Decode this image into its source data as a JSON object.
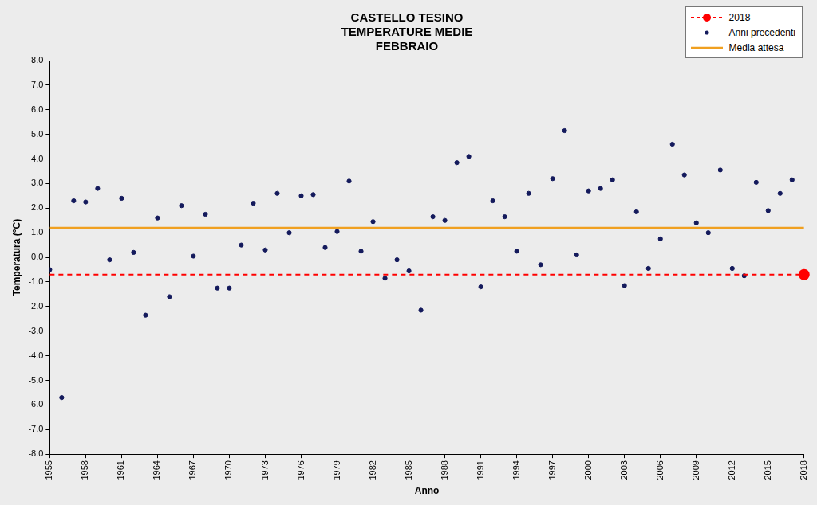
{
  "chart_data": {
    "type": "scatter",
    "title": [
      "CASTELLO TESINO",
      "TEMPERATURE MEDIE",
      "FEBBRAIO"
    ],
    "x_label": "Anno",
    "y_label": "Temperatura (°C)",
    "xlim": [
      1955,
      2018
    ],
    "xticks": [
      1955,
      1958,
      1961,
      1964,
      1967,
      1970,
      1973,
      1976,
      1979,
      1982,
      1985,
      1988,
      1991,
      1994,
      1997,
      2000,
      2003,
      2006,
      2009,
      2012,
      2015,
      2018
    ],
    "ylim": [
      -8,
      8
    ],
    "yticks": [
      {
        "value": -8,
        "label": "-8.0"
      },
      {
        "value": -7,
        "label": "-7.0"
      },
      {
        "value": -6,
        "label": "-6.0"
      },
      {
        "value": -5,
        "label": "-5.0"
      },
      {
        "value": -4,
        "label": "-4.0"
      },
      {
        "value": -3,
        "label": "-3.0"
      },
      {
        "value": -2,
        "label": "-2.0"
      },
      {
        "value": -1,
        "label": "-1.0"
      },
      {
        "value": 0,
        "label": "0.0"
      },
      {
        "value": 1,
        "label": "1.0"
      },
      {
        "value": 2,
        "label": "2.0"
      },
      {
        "value": 3,
        "label": "3.0"
      },
      {
        "value": 4,
        "label": "4.0"
      },
      {
        "value": 5,
        "label": "5.0"
      },
      {
        "value": 6,
        "label": "6.0"
      },
      {
        "value": 7,
        "label": "7.0"
      },
      {
        "value": 8,
        "label": "8.0"
      }
    ],
    "grid": false,
    "legend": "upper right",
    "series": [
      {
        "name": "2018",
        "type": "scatter",
        "color": "#ff0000",
        "marker": "circle",
        "line_style": "dashed",
        "x": [
          2018
        ],
        "values": [
          -0.7
        ]
      },
      {
        "name": "Anni precedenti",
        "type": "scatter",
        "color": "#141a5c",
        "marker": "circle",
        "x": [
          1955,
          1956,
          1957,
          1958,
          1959,
          1960,
          1961,
          1962,
          1963,
          1964,
          1965,
          1966,
          1967,
          1968,
          1969,
          1970,
          1971,
          1972,
          1973,
          1974,
          1975,
          1976,
          1977,
          1978,
          1979,
          1980,
          1981,
          1982,
          1983,
          1984,
          1985,
          1986,
          1987,
          1988,
          1989,
          1990,
          1991,
          1992,
          1993,
          1994,
          1995,
          1996,
          1997,
          1998,
          1999,
          2000,
          2001,
          2002,
          2003,
          2004,
          2005,
          2006,
          2007,
          2008,
          2009,
          2010,
          2011,
          2012,
          2013,
          2014,
          2015,
          2016,
          2017
        ],
        "values": [
          -0.5,
          -5.7,
          2.3,
          2.25,
          2.8,
          -0.1,
          2.4,
          0.2,
          -2.35,
          1.6,
          -1.6,
          2.1,
          0.05,
          1.75,
          -1.25,
          -1.25,
          0.5,
          2.2,
          0.3,
          2.6,
          1.0,
          2.5,
          2.55,
          0.4,
          1.05,
          3.1,
          0.25,
          1.45,
          -0.85,
          -0.1,
          -0.55,
          -2.15,
          1.65,
          1.5,
          3.85,
          4.1,
          -1.2,
          2.3,
          1.65,
          0.25,
          2.6,
          -0.3,
          3.2,
          5.15,
          0.1,
          2.7,
          2.8,
          3.15,
          -1.15,
          1.85,
          -0.45,
          0.75,
          4.6,
          3.35,
          1.4,
          1.0,
          3.55,
          -0.45,
          -0.75,
          3.05,
          1.9,
          2.6,
          3.15
        ]
      },
      {
        "name": "Media attesa",
        "type": "line",
        "color": "#f0a020",
        "line_style": "solid",
        "x": [
          1955,
          2018
        ],
        "values": [
          1.2,
          1.2
        ]
      }
    ]
  }
}
